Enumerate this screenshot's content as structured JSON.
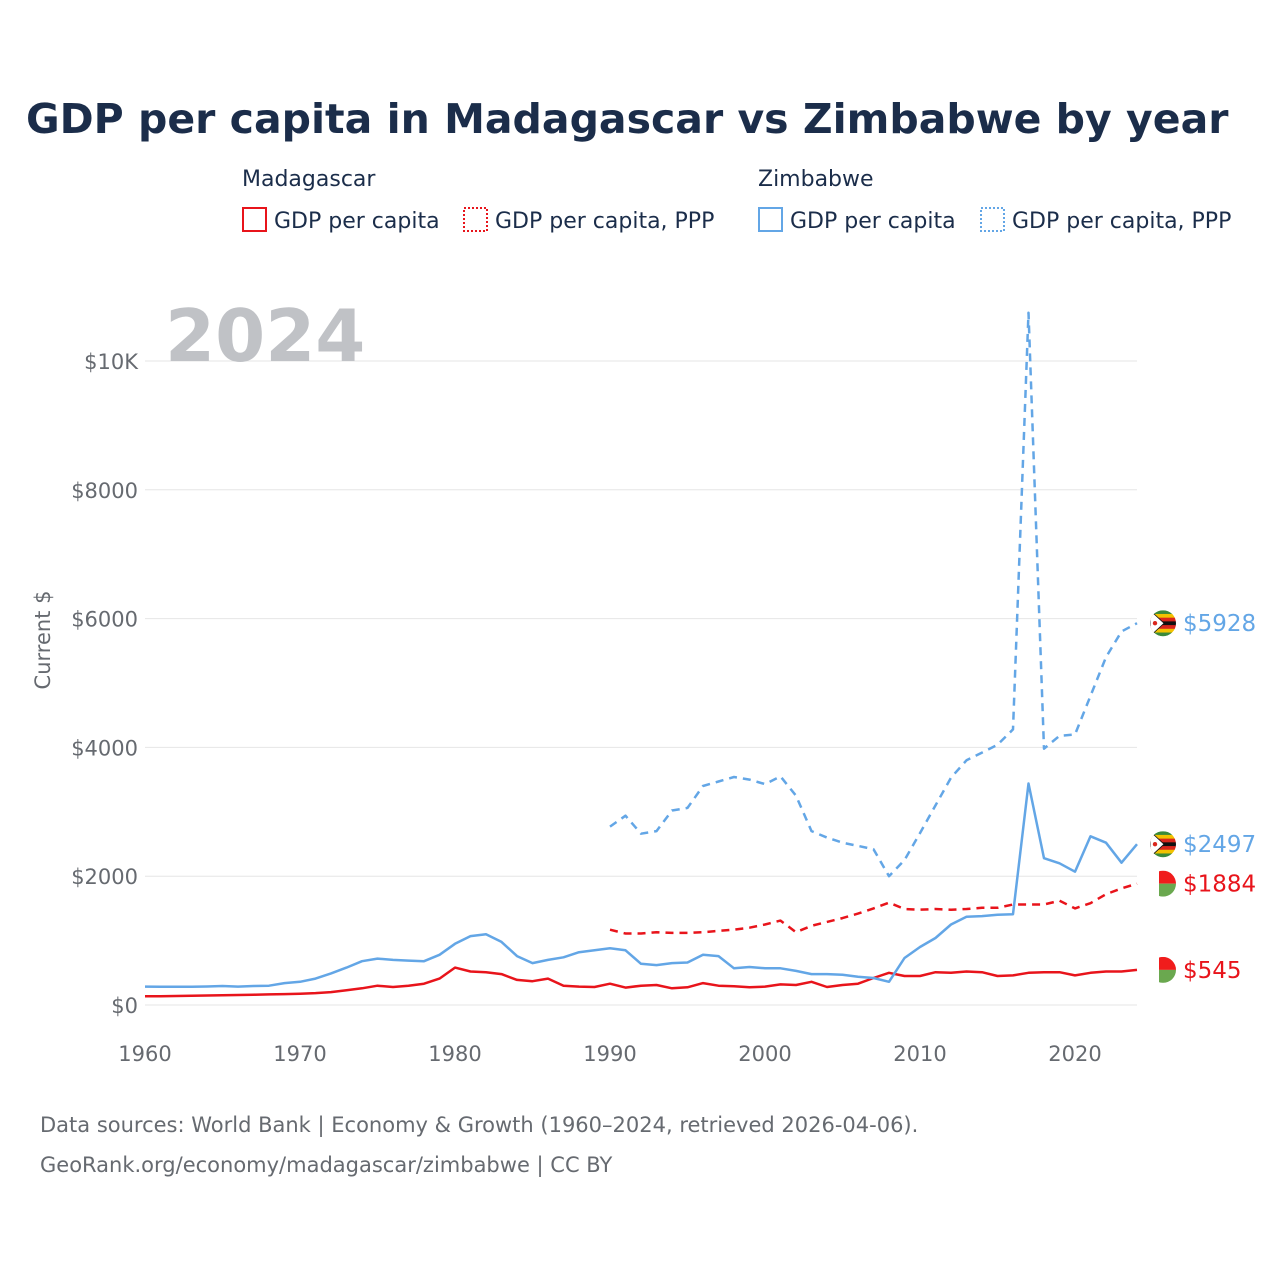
{
  "title": "GDP per capita in Madagascar vs Zimbabwe by year",
  "year_label": "2024",
  "legend": {
    "groups": [
      {
        "name": "Madagascar",
        "items": [
          {
            "label": "GDP per capita",
            "color": "#e8141b",
            "style": "solid"
          },
          {
            "label": "GDP per capita, PPP",
            "color": "#e8141b",
            "style": "dotted"
          }
        ]
      },
      {
        "name": "Zimbabwe",
        "items": [
          {
            "label": "GDP per capita",
            "color": "#63a6e6",
            "style": "solid"
          },
          {
            "label": "GDP per capita, PPP",
            "color": "#63a6e6",
            "style": "dotted"
          }
        ]
      }
    ]
  },
  "end_labels": [
    {
      "text": "$5928",
      "color": "#63a6e6",
      "value": 5928,
      "flag": "zimbabwe-flag-icon"
    },
    {
      "text": "$2497",
      "color": "#63a6e6",
      "value": 2497,
      "flag": "zimbabwe-flag-icon"
    },
    {
      "text": "$1884",
      "color": "#e8141b",
      "value": 1884,
      "flag": "madagascar-flag-icon"
    },
    {
      "text": "$545",
      "color": "#e8141b",
      "value": 545,
      "flag": "madagascar-flag-icon"
    }
  ],
  "source_line1": "Data sources: World Bank | Economy & Growth (1960–2024, retrieved 2026-04-06).",
  "source_line2": "GeoRank.org/economy/madagascar/zimbabwe | CC BY",
  "chart_data": {
    "type": "line",
    "title": "GDP per capita in Madagascar vs Zimbabwe by year",
    "xlabel": "",
    "ylabel": "Current $",
    "xlim": [
      1960,
      2024
    ],
    "ylim": [
      0,
      11000
    ],
    "x_ticks": [
      1960,
      1970,
      1980,
      1990,
      2000,
      2010,
      2020
    ],
    "x_tick_labels": [
      "1960",
      "1970",
      "1980",
      "1990",
      "2000",
      "2010",
      "2020"
    ],
    "y_ticks": [
      0,
      2000,
      4000,
      6000,
      8000,
      10000
    ],
    "y_tick_labels": [
      "$0",
      "$2000",
      "$4000",
      "$6000",
      "$8000",
      "$10K"
    ],
    "grid": true,
    "series": [
      {
        "name": "Madagascar GDP per capita",
        "country": "Madagascar",
        "color": "#e8141b",
        "dash": "solid",
        "x": [
          1960,
          1961,
          1962,
          1963,
          1964,
          1965,
          1966,
          1967,
          1968,
          1969,
          1970,
          1971,
          1972,
          1973,
          1974,
          1975,
          1976,
          1977,
          1978,
          1979,
          1980,
          1981,
          1982,
          1983,
          1984,
          1985,
          1986,
          1987,
          1988,
          1989,
          1990,
          1991,
          1992,
          1993,
          1994,
          1995,
          1996,
          1997,
          1998,
          1999,
          2000,
          2001,
          2002,
          2003,
          2004,
          2005,
          2006,
          2007,
          2008,
          2009,
          2010,
          2011,
          2012,
          2013,
          2014,
          2015,
          2016,
          2017,
          2018,
          2019,
          2020,
          2021,
          2022,
          2023,
          2024
        ],
        "values": [
          135,
          137,
          140,
          145,
          148,
          150,
          155,
          160,
          165,
          170,
          175,
          185,
          200,
          230,
          260,
          300,
          280,
          300,
          330,
          410,
          580,
          520,
          510,
          480,
          390,
          370,
          410,
          300,
          285,
          280,
          330,
          270,
          300,
          310,
          260,
          275,
          340,
          300,
          290,
          275,
          285,
          320,
          310,
          360,
          280,
          310,
          330,
          420,
          500,
          450,
          450,
          510,
          500,
          520,
          510,
          450,
          460,
          500,
          510,
          510,
          460,
          500,
          520,
          520,
          545
        ]
      },
      {
        "name": "Madagascar GDP per capita, PPP",
        "country": "Madagascar",
        "color": "#e8141b",
        "dash": "dashed",
        "x": [
          1990,
          1991,
          1992,
          1993,
          1994,
          1995,
          1996,
          1997,
          1998,
          1999,
          2000,
          2001,
          2002,
          2003,
          2004,
          2005,
          2006,
          2007,
          2008,
          2009,
          2010,
          2011,
          2012,
          2013,
          2014,
          2015,
          2016,
          2017,
          2018,
          2019,
          2020,
          2021,
          2022,
          2023,
          2024
        ],
        "values": [
          1170,
          1110,
          1110,
          1130,
          1120,
          1120,
          1130,
          1150,
          1170,
          1200,
          1250,
          1310,
          1130,
          1230,
          1290,
          1350,
          1420,
          1500,
          1590,
          1490,
          1480,
          1490,
          1480,
          1490,
          1510,
          1510,
          1560,
          1560,
          1560,
          1620,
          1500,
          1580,
          1720,
          1810,
          1884
        ]
      },
      {
        "name": "Zimbabwe GDP per capita",
        "country": "Zimbabwe",
        "color": "#63a6e6",
        "dash": "solid",
        "x": [
          1960,
          1961,
          1962,
          1963,
          1964,
          1965,
          1966,
          1967,
          1968,
          1969,
          1970,
          1971,
          1972,
          1973,
          1974,
          1975,
          1976,
          1977,
          1978,
          1979,
          1980,
          1981,
          1982,
          1983,
          1984,
          1985,
          1986,
          1987,
          1988,
          1989,
          1990,
          1991,
          1992,
          1993,
          1994,
          1995,
          1996,
          1997,
          1998,
          1999,
          2000,
          2001,
          2002,
          2003,
          2004,
          2005,
          2006,
          2007,
          2008,
          2009,
          2010,
          2011,
          2012,
          2013,
          2014,
          2015,
          2016,
          2017,
          2018,
          2019,
          2020,
          2021,
          2022,
          2023,
          2024
        ],
        "values": [
          285,
          283,
          282,
          283,
          288,
          295,
          285,
          295,
          300,
          340,
          360,
          410,
          490,
          580,
          680,
          720,
          700,
          690,
          680,
          780,
          950,
          1070,
          1100,
          980,
          760,
          650,
          700,
          740,
          820,
          850,
          880,
          850,
          640,
          620,
          650,
          660,
          780,
          760,
          570,
          590,
          570,
          570,
          530,
          480,
          480,
          470,
          440,
          420,
          360,
          730,
          900,
          1040,
          1250,
          1370,
          1380,
          1400,
          1410,
          3440,
          2280,
          2200,
          2070,
          2620,
          2520,
          2210,
          2497
        ]
      },
      {
        "name": "Zimbabwe GDP per capita, PPP",
        "country": "Zimbabwe",
        "color": "#63a6e6",
        "dash": "dashed",
        "x": [
          1990,
          1991,
          1992,
          1993,
          1994,
          1995,
          1996,
          1997,
          1998,
          1999,
          2000,
          2001,
          2002,
          2003,
          2004,
          2005,
          2006,
          2007,
          2008,
          2009,
          2010,
          2011,
          2012,
          2013,
          2014,
          2015,
          2016,
          2017,
          2018,
          2019,
          2020,
          2021,
          2022,
          2023,
          2024
        ],
        "values": [
          2770,
          2940,
          2660,
          2700,
          3020,
          3060,
          3400,
          3470,
          3540,
          3500,
          3430,
          3550,
          3250,
          2700,
          2600,
          2520,
          2470,
          2420,
          2000,
          2250,
          2670,
          3100,
          3530,
          3800,
          3920,
          4040,
          4280,
          10750,
          3980,
          4180,
          4200,
          4800,
          5400,
          5800,
          5928
        ]
      }
    ]
  }
}
